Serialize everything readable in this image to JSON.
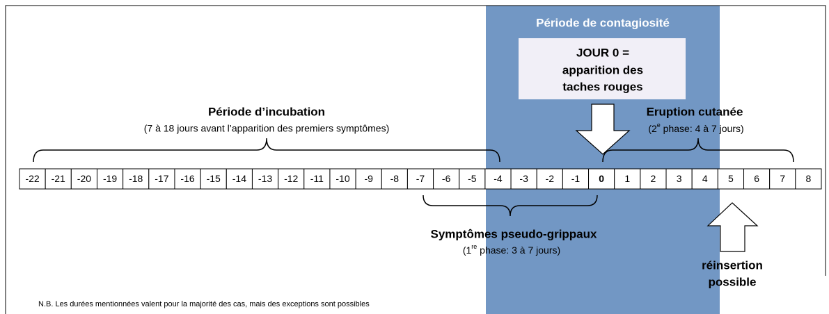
{
  "contagion": {
    "title": "Période de contagiosité",
    "box": [
      "JOUR 0 =",
      "apparition des",
      "taches rouges"
    ]
  },
  "incubation": {
    "title": "Période d’incubation",
    "subtitle": "(7 à 18 jours avant l’apparition des premiers symptômes)"
  },
  "eruption": {
    "title": "Eruption cutanée",
    "subtitle": {
      "pre": "(2",
      "sup": "e",
      "post": " phase: 4 à 7 jours)"
    }
  },
  "symptoms": {
    "title": "Symptômes pseudo-grippaux",
    "subtitle": {
      "pre": "(1",
      "sup": "re",
      "post": " phase: 3 à 7 jours)"
    }
  },
  "reinsertion": [
    "réinsertion",
    "possible"
  ],
  "days": [
    "-22",
    "-21",
    "-20",
    "-19",
    "-18",
    "-17",
    "-16",
    "-15",
    "-14",
    "-13",
    "-12",
    "-11",
    "-10",
    "-9",
    "-8",
    "-7",
    "-6",
    "-5",
    "-4",
    "-3",
    "-2",
    "-1",
    "0",
    "1",
    "2",
    "3",
    "4",
    "5",
    "6",
    "7",
    "8"
  ],
  "note": "N.B. Les durées mentionnées valent pour la majorité des cas, mais des exceptions sont possibles"
}
